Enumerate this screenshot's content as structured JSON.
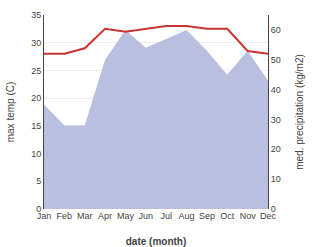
{
  "chart_data": {
    "type": "line",
    "categories": [
      "Jan",
      "Feb",
      "Mar",
      "Apr",
      "May",
      "Jun",
      "Jul",
      "Aug",
      "Sep",
      "Oct",
      "Nov",
      "Dec"
    ],
    "series": [
      {
        "type": "area",
        "axis": "y2",
        "color": "#b8bfdf",
        "values": [
          35,
          28,
          28,
          50,
          60,
          54,
          57,
          60,
          53,
          45,
          53,
          43
        ]
      },
      {
        "type": "line",
        "color": "#cc3333",
        "values": [
          28,
          28,
          29,
          32.5,
          32,
          32.5,
          33,
          33,
          32.5,
          32.5,
          28.5,
          28
        ]
      }
    ],
    "xlabel": "date (month)",
    "ylabel": "max temp (C)",
    "y2label": "med. precipitation (kg/m2)",
    "ylim": [
      0,
      35
    ],
    "yticks": [
      0,
      5,
      10,
      15,
      20,
      25,
      30,
      35
    ],
    "y2lim": [
      0,
      65
    ],
    "y2ticks": [
      0,
      10,
      20,
      30,
      40,
      50,
      60
    ],
    "grid": true
  }
}
